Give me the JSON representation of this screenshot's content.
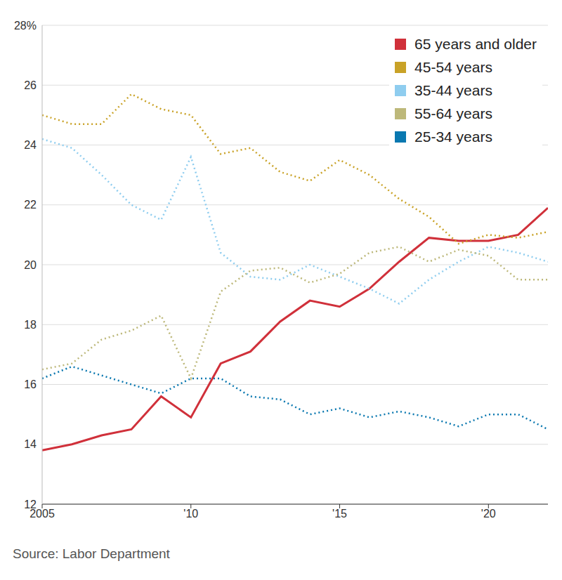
{
  "chart_data": {
    "type": "line",
    "source": "Source: Labor Department",
    "x": [
      2005,
      2006,
      2007,
      2008,
      2009,
      2010,
      2011,
      2012,
      2013,
      2014,
      2015,
      2016,
      2017,
      2018,
      2019,
      2020,
      2021,
      2022
    ],
    "xlim": [
      2005,
      2022
    ],
    "xticks": [
      {
        "value": 2005,
        "label": "2005"
      },
      {
        "value": 2010,
        "label": "'10"
      },
      {
        "value": 2015,
        "label": "'15"
      },
      {
        "value": 2020,
        "label": "'20"
      }
    ],
    "ylim": [
      12,
      28
    ],
    "yticks": [
      12,
      14,
      16,
      18,
      20,
      22,
      24,
      26,
      {
        "value": 28,
        "label": "28%"
      }
    ],
    "grid": true,
    "legend": "upper right",
    "series": [
      {
        "name": "65 years and older",
        "color": "#d0303a",
        "line_style": "solid",
        "values": [
          13.8,
          14.0,
          14.3,
          14.5,
          15.6,
          14.9,
          16.7,
          17.1,
          18.1,
          18.8,
          18.6,
          19.2,
          20.1,
          20.9,
          20.8,
          20.8,
          21.0,
          21.9
        ]
      },
      {
        "name": "45-54 years",
        "color": "#c9a227",
        "line_style": "dotted",
        "values": [
          25.0,
          24.7,
          24.7,
          25.7,
          25.2,
          25.0,
          23.7,
          23.9,
          23.1,
          22.8,
          23.5,
          23.0,
          22.2,
          21.6,
          20.7,
          21.0,
          20.9,
          21.1
        ]
      },
      {
        "name": "35-44 years",
        "color": "#8fcdef",
        "line_style": "dotted",
        "values": [
          24.2,
          23.9,
          23.0,
          22.0,
          21.5,
          23.6,
          20.4,
          19.6,
          19.5,
          20.0,
          19.6,
          19.2,
          18.7,
          19.5,
          20.1,
          20.6,
          20.4,
          20.1
        ]
      },
      {
        "name": "55-64 years",
        "color": "#bdb87a",
        "line_style": "dotted",
        "values": [
          16.5,
          16.7,
          17.5,
          17.8,
          18.3,
          16.2,
          19.1,
          19.8,
          19.9,
          19.4,
          19.7,
          20.4,
          20.6,
          20.1,
          20.5,
          20.3,
          19.5,
          19.5
        ]
      },
      {
        "name": "25-34 years",
        "color": "#0a78b0",
        "line_style": "dotted",
        "values": [
          16.2,
          16.6,
          16.3,
          16.0,
          15.7,
          16.2,
          16.2,
          15.6,
          15.5,
          15.0,
          15.2,
          14.9,
          15.1,
          14.9,
          14.6,
          15.0,
          15.0,
          14.5
        ]
      }
    ]
  }
}
